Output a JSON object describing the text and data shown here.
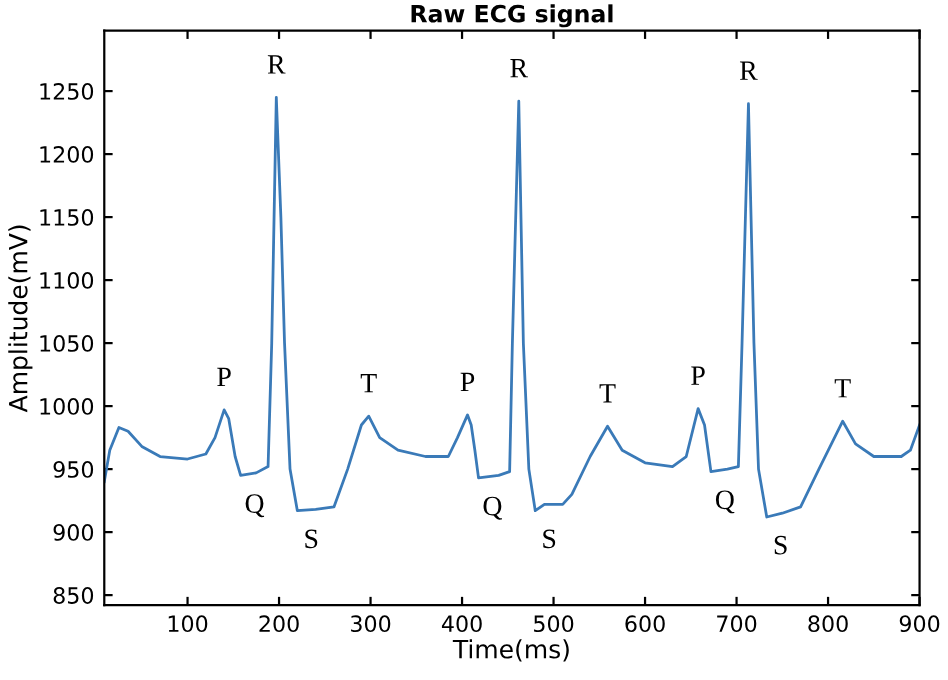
{
  "chart_data": {
    "type": "line",
    "title": "Raw ECG signal",
    "xlabel": "Time(ms)",
    "ylabel": "Amplitude(mV)",
    "x": [
      9,
      15,
      25,
      35,
      50,
      70,
      100,
      120,
      130,
      140,
      145,
      152,
      158,
      175,
      188,
      192,
      197,
      202,
      206,
      212,
      220,
      240,
      260,
      275,
      290,
      298,
      310,
      330,
      360,
      385,
      395,
      406,
      410,
      414,
      418,
      440,
      452,
      455,
      462,
      467,
      473,
      480,
      490,
      510,
      520,
      540,
      559,
      575,
      600,
      630,
      645,
      658,
      665,
      672,
      690,
      702,
      706,
      713,
      719,
      724,
      733,
      750,
      770,
      790,
      816,
      830,
      850,
      880,
      890,
      900
    ],
    "series": [
      {
        "color": "#3a7ab8",
        "values": [
          940,
          965,
          983,
          980,
          968,
          960,
          958,
          962,
          975,
          997,
          990,
          960,
          945,
          947,
          952,
          1050,
          1245,
          1150,
          1050,
          950,
          917,
          918,
          920,
          950,
          985,
          992,
          975,
          965,
          960,
          960,
          975,
          993,
          985,
          965,
          943,
          945,
          948,
          1050,
          1242,
          1050,
          950,
          917,
          922,
          922,
          930,
          960,
          984,
          965,
          955,
          952,
          960,
          998,
          985,
          948,
          950,
          952,
          1050,
          1240,
          1050,
          950,
          912,
          915,
          920,
          950,
          988,
          970,
          960,
          960,
          965,
          985
        ]
      }
    ],
    "annotations": [
      {
        "text": "P",
        "x": 140,
        "y": 997
      },
      {
        "text": "Q",
        "x": 158,
        "y": 945
      },
      {
        "text": "R",
        "x": 197,
        "y": 1245
      },
      {
        "text": "S",
        "x": 220,
        "y": 917
      },
      {
        "text": "T",
        "x": 298,
        "y": 992
      },
      {
        "text": "P",
        "x": 406,
        "y": 993
      },
      {
        "text": "Q",
        "x": 418,
        "y": 943
      },
      {
        "text": "R",
        "x": 462,
        "y": 1242
      },
      {
        "text": "S",
        "x": 480,
        "y": 917
      },
      {
        "text": "T",
        "x": 559,
        "y": 984
      },
      {
        "text": "P",
        "x": 658,
        "y": 998
      },
      {
        "text": "Q",
        "x": 672,
        "y": 948
      },
      {
        "text": "R",
        "x": 713,
        "y": 1240
      },
      {
        "text": "S",
        "x": 733,
        "y": 912
      },
      {
        "text": "T",
        "x": 816,
        "y": 988
      }
    ],
    "xlim": [
      9,
      900
    ],
    "ylim": [
      842,
      1298
    ],
    "xticks": [
      100,
      200,
      300,
      400,
      500,
      600,
      700,
      800,
      900
    ],
    "yticks": [
      850,
      900,
      950,
      1000,
      1050,
      1100,
      1150,
      1200,
      1250
    ],
    "grid": false,
    "legend": false,
    "marker": "none",
    "line_style": "solid"
  }
}
